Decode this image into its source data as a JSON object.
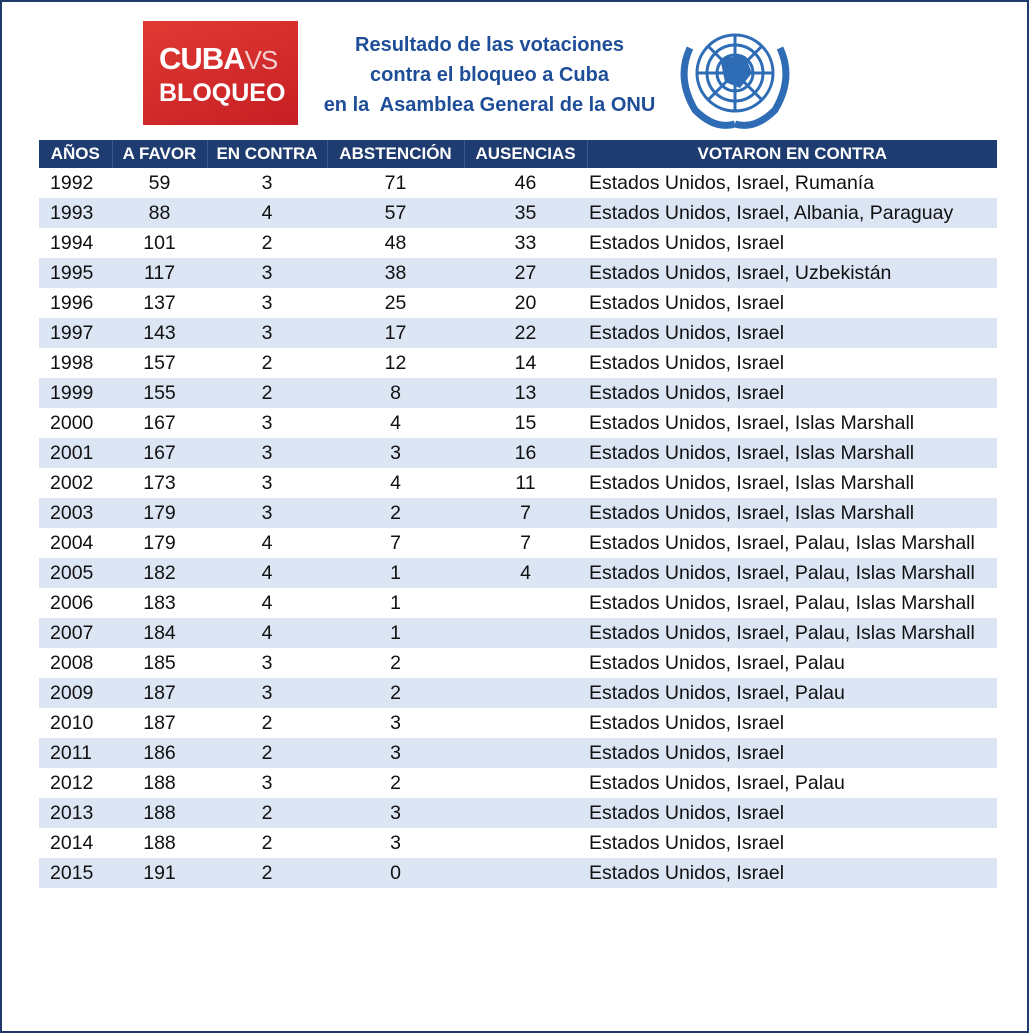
{
  "logo": {
    "word1": "CUBA",
    "word2": "VS",
    "word3": "BLOQUEO"
  },
  "header": {
    "title_lines": [
      "Resultado de las votaciones",
      "contra el bloqueo a Cuba",
      "en la  Asamblea General de la ONU"
    ]
  },
  "table": {
    "columns": [
      "AÑOS",
      "A FAVOR",
      "EN CONTRA",
      "ABSTENCIÓN",
      "AUSENCIAS",
      "VOTARON EN CONTRA"
    ],
    "rows": [
      [
        1992,
        59,
        3,
        71,
        46,
        "Estados Unidos, Israel, Rumanía"
      ],
      [
        1993,
        88,
        4,
        57,
        35,
        "Estados Unidos, Israel, Albania, Paraguay"
      ],
      [
        1994,
        101,
        2,
        48,
        33,
        "Estados Unidos, Israel"
      ],
      [
        1995,
        117,
        3,
        38,
        27,
        "Estados Unidos, Israel, Uzbekistán"
      ],
      [
        1996,
        137,
        3,
        25,
        20,
        "Estados Unidos, Israel"
      ],
      [
        1997,
        143,
        3,
        17,
        22,
        "Estados Unidos, Israel"
      ],
      [
        1998,
        157,
        2,
        12,
        14,
        "Estados Unidos, Israel"
      ],
      [
        1999,
        155,
        2,
        8,
        13,
        "Estados Unidos, Israel"
      ],
      [
        2000,
        167,
        3,
        4,
        15,
        "Estados Unidos, Israel, Islas Marshall"
      ],
      [
        2001,
        167,
        3,
        3,
        16,
        "Estados Unidos, Israel, Islas Marshall"
      ],
      [
        2002,
        173,
        3,
        4,
        11,
        "Estados Unidos, Israel, Islas Marshall"
      ],
      [
        2003,
        179,
        3,
        2,
        7,
        "Estados Unidos, Israel, Islas Marshall"
      ],
      [
        2004,
        179,
        4,
        7,
        7,
        "Estados Unidos, Israel, Palau, Islas Marshall"
      ],
      [
        2005,
        182,
        4,
        1,
        4,
        "Estados Unidos, Israel, Palau, Islas Marshall"
      ],
      [
        2006,
        183,
        4,
        1,
        null,
        "Estados Unidos, Israel, Palau, Islas Marshall"
      ],
      [
        2007,
        184,
        4,
        1,
        null,
        "Estados Unidos, Israel, Palau, Islas Marshall"
      ],
      [
        2008,
        185,
        3,
        2,
        null,
        "Estados Unidos, Israel, Palau"
      ],
      [
        2009,
        187,
        3,
        2,
        null,
        "Estados Unidos, Israel, Palau"
      ],
      [
        2010,
        187,
        2,
        3,
        null,
        "Estados Unidos, Israel"
      ],
      [
        2011,
        186,
        2,
        3,
        null,
        "Estados Unidos, Israel"
      ],
      [
        2012,
        188,
        3,
        2,
        null,
        "Estados Unidos, Israel, Palau"
      ],
      [
        2013,
        188,
        2,
        3,
        null,
        "Estados Unidos, Israel"
      ],
      [
        2014,
        188,
        2,
        3,
        null,
        "Estados Unidos, Israel"
      ],
      [
        2015,
        191,
        2,
        0,
        null,
        "Estados Unidos, Israel"
      ]
    ]
  }
}
